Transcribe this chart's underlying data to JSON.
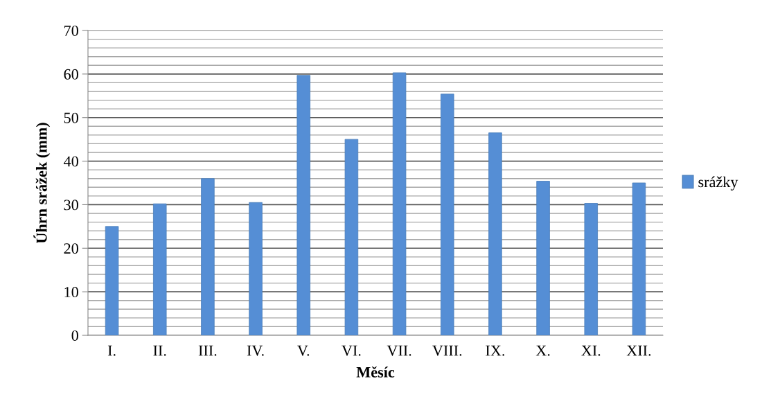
{
  "chart_data": {
    "type": "bar",
    "xlabel": "Měsíc",
    "ylabel": "Úhrn srážek (mm)",
    "categories": [
      "I.",
      "II.",
      "III.",
      "IV.",
      "V.",
      "VI.",
      "VII.",
      "VIII.",
      "IX.",
      "X.",
      "XI.",
      "XII."
    ],
    "series": [
      {
        "name": "srážky",
        "color": "#558ed5",
        "values": [
          25.0,
          30.2,
          36.0,
          30.5,
          59.7,
          45.0,
          60.3,
          55.4,
          46.5,
          35.4,
          30.3,
          35.0
        ]
      }
    ],
    "ylim": [
      0,
      70
    ],
    "yticks": [
      0,
      {
        "value": 2,
        "label": null
      },
      {
        "value": 4,
        "label": null
      },
      {
        "value": 6,
        "label": null
      },
      {
        "value": 8,
        "label": null
      },
      10,
      {
        "value": 12,
        "label": null
      },
      {
        "value": 14,
        "label": null
      },
      {
        "value": 16,
        "label": null
      },
      {
        "value": 18,
        "label": null
      },
      20,
      {
        "value": 22,
        "label": null
      },
      {
        "value": 24,
        "label": null
      },
      {
        "value": 26,
        "label": null
      },
      {
        "value": 28,
        "label": null
      },
      30,
      {
        "value": 32,
        "label": null
      },
      {
        "value": 34,
        "label": null
      },
      {
        "value": 36,
        "label": null
      },
      {
        "value": 38,
        "label": null
      },
      40,
      {
        "value": 42,
        "label": null
      },
      {
        "value": 44,
        "label": null
      },
      {
        "value": 46,
        "label": null
      },
      {
        "value": 48,
        "label": null
      },
      50,
      {
        "value": 52,
        "label": null
      },
      {
        "value": 54,
        "label": null
      },
      {
        "value": 56,
        "label": null
      },
      {
        "value": 58,
        "label": null
      },
      60,
      {
        "value": 62,
        "label": null
      },
      {
        "value": 64,
        "label": null
      },
      {
        "value": 66,
        "label": null
      },
      {
        "value": 68,
        "label": null
      },
      70
    ],
    "grid": "y",
    "legend": "right"
  }
}
